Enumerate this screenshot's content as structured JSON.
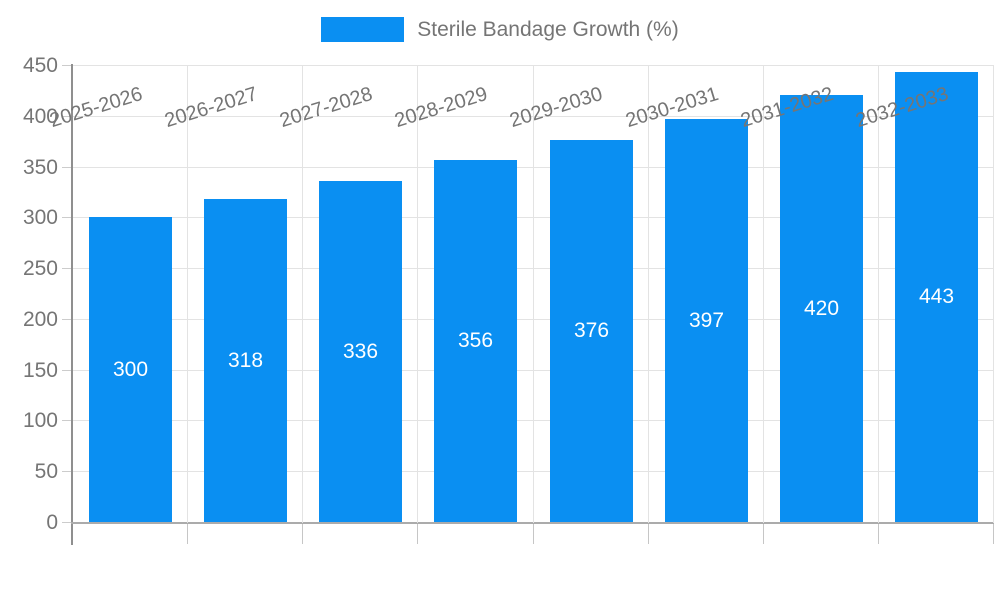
{
  "chart_data": {
    "type": "bar",
    "legend_label": "Sterile Bandage Growth (%)",
    "categories": [
      "2025-2026",
      "2026-2027",
      "2027-2028",
      "2028-2029",
      "2029-2030",
      "2030-2031",
      "2031-2032",
      "2032-2033"
    ],
    "values": [
      300,
      318,
      336,
      356,
      376,
      397,
      420,
      443
    ],
    "yticks": [
      0,
      50,
      100,
      150,
      200,
      250,
      300,
      350,
      400,
      450
    ],
    "ylim": [
      0,
      450
    ],
    "grid": true,
    "legend_position": "top-center",
    "xlabel": "",
    "ylabel": "",
    "colors": {
      "bar": "#0a8ff2",
      "value_label": "#ffffff",
      "grid": "#e3e3e3",
      "axis": "#9e9e9e",
      "tick_text": "#757575",
      "background": "#ffffff"
    }
  }
}
